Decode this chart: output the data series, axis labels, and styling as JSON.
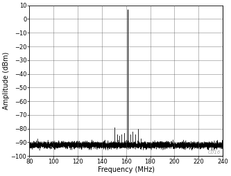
{
  "xlim": [
    80,
    240
  ],
  "ylim": [
    -100,
    10
  ],
  "xticks": [
    80,
    100,
    120,
    140,
    160,
    180,
    200,
    220,
    240
  ],
  "yticks": [
    -100,
    -90,
    -80,
    -70,
    -60,
    -50,
    -40,
    -30,
    -20,
    -10,
    0,
    10
  ],
  "xlabel": "Frequency (MHz)",
  "ylabel": "Amplitude (dBm)",
  "noise_floor": -92,
  "noise_seed": 42,
  "main_carrier_freq": 161.1328125,
  "main_carrier_amp": 7,
  "spurs": [
    {
      "freq": 150.5,
      "amp": -79
    },
    {
      "freq": 152.5,
      "amp": -84
    },
    {
      "freq": 154.5,
      "amp": -85
    },
    {
      "freq": 156.0,
      "amp": -84
    },
    {
      "freq": 158.5,
      "amp": -83
    },
    {
      "freq": 163.5,
      "amp": -84
    },
    {
      "freq": 165.5,
      "amp": -82
    },
    {
      "freq": 167.5,
      "amp": -84
    },
    {
      "freq": 170.0,
      "amp": -80
    }
  ],
  "line_color": "#000000",
  "axis_label_color": "#000000",
  "tick_label_color": "#000000",
  "background_color": "#ffffff",
  "grid_color": "#555555",
  "watermark": "C016",
  "watermark_color": "#aaaaaa",
  "figsize": [
    3.33,
    2.54
  ],
  "dpi": 100
}
